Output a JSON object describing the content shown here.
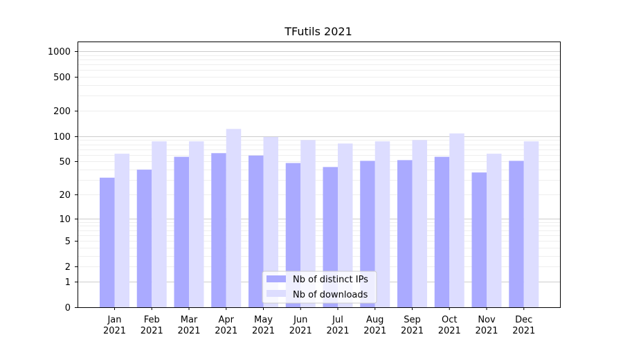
{
  "chart_data": {
    "type": "bar",
    "title": "TFutils 2021",
    "xlabel": "",
    "ylabel": "",
    "y_scale": "symlog",
    "ylim": [
      0,
      1300
    ],
    "y_ticks": [
      0,
      1,
      2,
      5,
      10,
      20,
      50,
      100,
      200,
      500,
      1000
    ],
    "y_tick_labels": [
      "0",
      "1",
      "2",
      "5",
      "10",
      "20",
      "50",
      "100",
      "200",
      "500",
      "1000"
    ],
    "grid": true,
    "legend_position": "bottom-center",
    "categories": [
      "Jan\n2021",
      "Feb\n2021",
      "Mar\n2021",
      "Apr\n2021",
      "May\n2021",
      "Jun\n2021",
      "Jul\n2021",
      "Aug\n2021",
      "Sep\n2021",
      "Oct\n2021",
      "Nov\n2021",
      "Dec\n2021"
    ],
    "category_labels": [
      [
        "Jan",
        "2021"
      ],
      [
        "Feb",
        "2021"
      ],
      [
        "Mar",
        "2021"
      ],
      [
        "Apr",
        "2021"
      ],
      [
        "May",
        "2021"
      ],
      [
        "Jun",
        "2021"
      ],
      [
        "Jul",
        "2021"
      ],
      [
        "Aug",
        "2021"
      ],
      [
        "Sep",
        "2021"
      ],
      [
        "Oct",
        "2021"
      ],
      [
        "Nov",
        "2021"
      ],
      [
        "Dec",
        "2021"
      ]
    ],
    "series": [
      {
        "name": "Nb of distinct IPs",
        "color": "#aaaaff",
        "values": [
          32,
          40,
          57,
          63,
          59,
          48,
          43,
          51,
          52,
          57,
          37,
          51
        ]
      },
      {
        "name": "Nb of downloads",
        "color": "#ddddff",
        "values": [
          62,
          87,
          87,
          122,
          98,
          90,
          82,
          87,
          90,
          108,
          62,
          87
        ]
      }
    ]
  }
}
